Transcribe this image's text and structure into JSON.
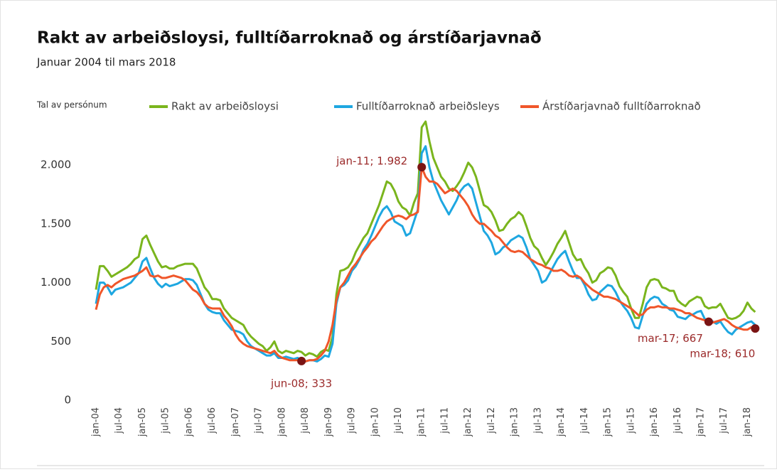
{
  "chart_data": {
    "type": "line",
    "title": "Rakt av arbeiðsloysi, fulltíðarroknað og árstíðarjavnað",
    "subtitle": "Januar 2004 til mars 2018",
    "y_axis_label": "Tal av persónum",
    "categories": [
      "jan-04",
      null,
      null,
      null,
      null,
      null,
      "jul-04",
      null,
      null,
      null,
      null,
      null,
      "jan-05",
      null,
      null,
      null,
      null,
      null,
      "jul-05",
      null,
      null,
      null,
      null,
      null,
      "jan-06",
      null,
      null,
      null,
      null,
      null,
      "jul-06",
      null,
      null,
      null,
      null,
      null,
      "jan-07",
      null,
      null,
      null,
      null,
      null,
      "jul-07",
      null,
      null,
      null,
      null,
      null,
      "jan-08",
      null,
      null,
      null,
      null,
      null,
      "jul-08",
      null,
      null,
      null,
      null,
      null,
      "jan-09",
      null,
      null,
      null,
      null,
      null,
      "jul-09",
      null,
      null,
      null,
      null,
      null,
      "jan-10",
      null,
      null,
      null,
      null,
      null,
      "jul-10",
      null,
      null,
      null,
      null,
      null,
      "jan-11",
      null,
      null,
      null,
      null,
      null,
      "jul-11",
      null,
      null,
      null,
      null,
      null,
      "jan-12",
      null,
      null,
      null,
      null,
      null,
      "jul-12",
      null,
      null,
      null,
      null,
      null,
      "jan-13",
      null,
      null,
      null,
      null,
      null,
      "jul-13",
      null,
      null,
      null,
      null,
      null,
      "jan-14",
      null,
      null,
      null,
      null,
      null,
      "jul-14",
      null,
      null,
      null,
      null,
      null,
      "jan-15",
      null,
      null,
      null,
      null,
      null,
      "jul-15",
      null,
      null,
      null,
      null,
      null,
      "jan-16",
      null,
      null,
      null,
      null,
      null,
      "jul-16",
      null,
      null,
      null,
      null,
      null,
      "jan-17",
      null,
      null,
      null,
      null,
      null,
      "jul-17",
      null,
      null,
      null,
      null,
      null,
      "jan-18",
      null,
      null
    ],
    "series": [
      {
        "name": "Rakt av arbeiðsloysi",
        "color": "#7ab51d",
        "values": [
          940,
          1140,
          1140,
          1100,
          1050,
          1070,
          1090,
          1110,
          1130,
          1160,
          1200,
          1220,
          1370,
          1400,
          1320,
          1250,
          1180,
          1130,
          1140,
          1120,
          1120,
          1140,
          1150,
          1160,
          1160,
          1160,
          1120,
          1040,
          960,
          920,
          860,
          860,
          850,
          780,
          740,
          700,
          680,
          660,
          640,
          580,
          540,
          510,
          480,
          460,
          420,
          450,
          500,
          420,
          400,
          420,
          410,
          400,
          420,
          410,
          380,
          400,
          390,
          370,
          410,
          430,
          420,
          540,
          900,
          1100,
          1110,
          1130,
          1180,
          1260,
          1320,
          1380,
          1420,
          1500,
          1580,
          1660,
          1760,
          1860,
          1840,
          1780,
          1690,
          1640,
          1620,
          1570,
          1680,
          1760,
          2320,
          2370,
          2200,
          2060,
          1980,
          1900,
          1860,
          1800,
          1780,
          1820,
          1870,
          1940,
          2020,
          1980,
          1900,
          1780,
          1660,
          1640,
          1600,
          1530,
          1440,
          1450,
          1500,
          1540,
          1560,
          1600,
          1570,
          1480,
          1380,
          1310,
          1280,
          1210,
          1150,
          1200,
          1260,
          1330,
          1380,
          1440,
          1340,
          1240,
          1190,
          1200,
          1130,
          1080,
          1000,
          1020,
          1080,
          1100,
          1130,
          1120,
          1060,
          970,
          920,
          880,
          780,
          700,
          700,
          820,
          960,
          1020,
          1030,
          1020,
          960,
          950,
          930,
          930,
          850,
          820,
          800,
          840,
          860,
          880,
          870,
          800,
          780,
          790,
          790,
          820,
          760,
          700,
          690,
          700,
          720,
          760,
          830,
          780,
          750
        ]
      },
      {
        "name": "Fulltíðarroknað arbeiðsleys",
        "color": "#1ea7e1",
        "values": [
          820,
          1000,
          1000,
          960,
          900,
          940,
          950,
          960,
          980,
          1000,
          1040,
          1080,
          1180,
          1210,
          1120,
          1040,
          990,
          960,
          990,
          970,
          980,
          990,
          1010,
          1030,
          1030,
          1020,
          980,
          900,
          820,
          770,
          750,
          740,
          740,
          680,
          640,
          600,
          590,
          580,
          560,
          500,
          460,
          440,
          420,
          400,
          380,
          380,
          400,
          360,
          360,
          370,
          360,
          350,
          360,
          340,
          330,
          340,
          340,
          330,
          350,
          380,
          370,
          480,
          820,
          960,
          980,
          1020,
          1100,
          1140,
          1200,
          1280,
          1330,
          1400,
          1480,
          1560,
          1620,
          1650,
          1600,
          1520,
          1500,
          1480,
          1400,
          1420,
          1520,
          1620,
          2100,
          2160,
          1980,
          1860,
          1780,
          1700,
          1640,
          1580,
          1640,
          1700,
          1780,
          1820,
          1840,
          1800,
          1680,
          1560,
          1440,
          1400,
          1340,
          1240,
          1260,
          1300,
          1320,
          1360,
          1380,
          1400,
          1380,
          1300,
          1200,
          1150,
          1100,
          1000,
          1020,
          1080,
          1140,
          1200,
          1240,
          1270,
          1180,
          1100,
          1040,
          1040,
          980,
          900,
          850,
          860,
          920,
          950,
          980,
          970,
          920,
          850,
          800,
          760,
          700,
          620,
          610,
          720,
          820,
          860,
          880,
          870,
          820,
          800,
          770,
          760,
          710,
          700,
          690,
          720,
          730,
          750,
          760,
          690,
          680,
          670,
          650,
          670,
          620,
          580,
          560,
          600,
          620,
          640,
          660,
          670,
          640
        ]
      },
      {
        "name": "Árstíðarjavnað fulltíðarroknað",
        "color": "#f0562a",
        "values": [
          770,
          900,
          960,
          980,
          960,
          990,
          1010,
          1030,
          1040,
          1050,
          1060,
          1080,
          1100,
          1130,
          1060,
          1050,
          1060,
          1040,
          1040,
          1050,
          1060,
          1050,
          1040,
          1020,
          980,
          940,
          920,
          880,
          820,
          790,
          780,
          780,
          780,
          720,
          680,
          630,
          560,
          510,
          480,
          460,
          450,
          440,
          430,
          420,
          410,
          400,
          420,
          380,
          360,
          350,
          340,
          340,
          340,
          333,
          330,
          340,
          340,
          350,
          380,
          420,
          500,
          640,
          850,
          960,
          1000,
          1060,
          1120,
          1160,
          1210,
          1260,
          1300,
          1350,
          1380,
          1430,
          1480,
          1520,
          1540,
          1560,
          1570,
          1560,
          1540,
          1570,
          1580,
          1600,
          1982,
          1900,
          1860,
          1860,
          1840,
          1800,
          1760,
          1780,
          1800,
          1780,
          1740,
          1700,
          1650,
          1580,
          1530,
          1500,
          1500,
          1470,
          1440,
          1400,
          1380,
          1340,
          1300,
          1270,
          1260,
          1270,
          1260,
          1230,
          1200,
          1180,
          1160,
          1150,
          1130,
          1120,
          1100,
          1100,
          1110,
          1090,
          1060,
          1050,
          1060,
          1040,
          1000,
          970,
          940,
          920,
          900,
          880,
          880,
          870,
          860,
          840,
          820,
          800,
          780,
          750,
          720,
          730,
          770,
          790,
          790,
          800,
          790,
          790,
          780,
          780,
          770,
          760,
          740,
          740,
          720,
          700,
          690,
          680,
          667,
          660,
          670,
          680,
          690,
          670,
          640,
          620,
          610,
          600,
          600,
          620,
          610
        ]
      }
    ],
    "annotations": [
      {
        "text": "jun-08; 333",
        "series": 2,
        "point": 53
      },
      {
        "text": "jan-11; 1.982",
        "series": 2,
        "point": 84
      },
      {
        "text": "mar-17; 667",
        "series": 2,
        "point": 158
      },
      {
        "text": "mar-18; 610",
        "series": 2,
        "point": 170
      }
    ],
    "annotation_color": "#9b2a2a",
    "marker_color": "#7a1414",
    "ylim": [
      0,
      2400
    ],
    "yticks": [
      0,
      500,
      {
        "value": 1000,
        "label": "1.000"
      },
      {
        "value": 1500,
        "label": "1.500"
      },
      {
        "value": 2000,
        "label": "2.000"
      }
    ],
    "grid": false,
    "legend": "top"
  }
}
